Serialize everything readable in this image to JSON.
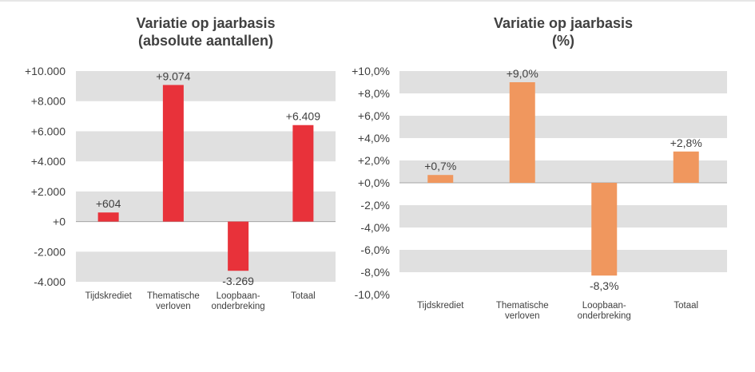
{
  "chart_data": [
    {
      "type": "bar",
      "title_line1": "Variatie op jaarbasis",
      "title_line2": "(absolute aantallen)",
      "categories": [
        {
          "line1": "Tijdskrediet",
          "line2": ""
        },
        {
          "line1": "Thematische",
          "line2": "verloven"
        },
        {
          "line1": "Loopbaan-",
          "line2": "onderbreking"
        },
        {
          "line1": "Totaal",
          "line2": ""
        }
      ],
      "values": [
        604,
        9074,
        -3269,
        6409
      ],
      "data_labels": [
        "+604",
        "+9.074",
        "-3.269",
        "+6.409"
      ],
      "ylim": [
        -4000,
        10000
      ],
      "yticks": [
        10000,
        8000,
        6000,
        4000,
        2000,
        0,
        -2000,
        -4000
      ],
      "ytick_labels": [
        "+10.000",
        "+8.000",
        "+6.000",
        "+4.000",
        "+2.000",
        "+0",
        "-2.000",
        "-4.000"
      ],
      "bar_color": "#e8323a",
      "band_color": "#e0e0e0",
      "xlabel": "",
      "ylabel": ""
    },
    {
      "type": "bar",
      "title_line1": "Variatie op jaarbasis",
      "title_line2": "(%)",
      "categories": [
        {
          "line1": "Tijdskrediet",
          "line2": ""
        },
        {
          "line1": "Thematische",
          "line2": "verloven"
        },
        {
          "line1": "Loopbaan-",
          "line2": "onderbreking"
        },
        {
          "line1": "Totaal",
          "line2": ""
        }
      ],
      "values": [
        0.7,
        9.0,
        -8.3,
        2.8
      ],
      "data_labels": [
        "+0,7%",
        "+9,0%",
        "-8,3%",
        "+2,8%"
      ],
      "ylim": [
        -10,
        10
      ],
      "yticks": [
        10,
        8,
        6,
        4,
        2,
        0,
        -2,
        -4,
        -6,
        -8,
        -10
      ],
      "ytick_labels": [
        "+10,0%",
        "+8,0%",
        "+6,0%",
        "+4,0%",
        "+2,0%",
        "+0,0%",
        "-2,0%",
        "-4,0%",
        "-6,0%",
        "-8,0%",
        "-10,0%"
      ],
      "bar_color": "#f0975e",
      "band_color": "#e0e0e0",
      "xlabel": "",
      "ylabel": ""
    }
  ]
}
